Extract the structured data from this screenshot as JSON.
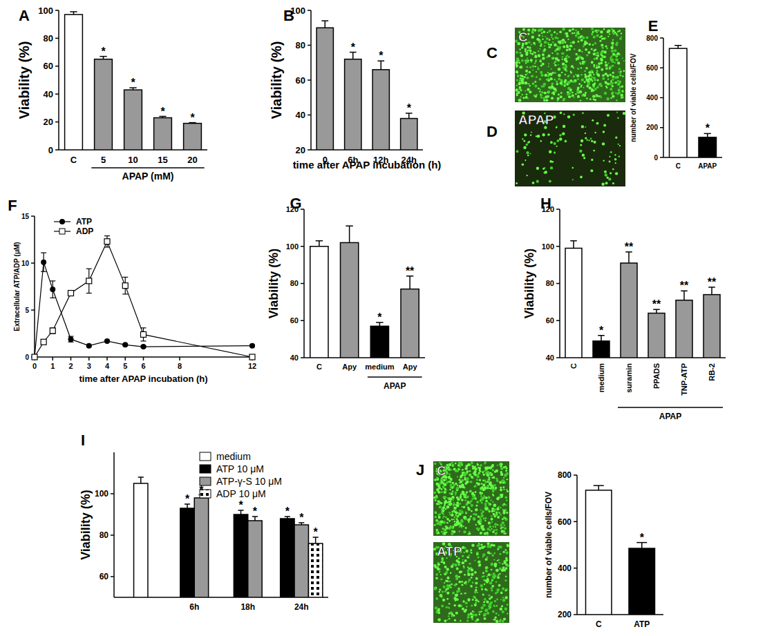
{
  "chart_data": [
    {
      "type": "bar",
      "title": "A",
      "categories": [
        "C",
        "5",
        "10",
        "15",
        "20"
      ],
      "values": [
        97,
        65,
        43,
        23,
        19
      ],
      "errors": [
        2,
        2,
        1.5,
        1,
        0.5
      ],
      "significance": [
        null,
        "*",
        "*",
        "*",
        "*"
      ],
      "colors": [
        "#ffffff",
        "#999999",
        "#999999",
        "#999999",
        "#999999"
      ],
      "ylim": [
        0,
        100
      ],
      "yticks": [
        0,
        20,
        40,
        60,
        80,
        100
      ],
      "y_label": "Viability (%)",
      "group_label": {
        "text": "APAP (mM)",
        "from": 1,
        "to": 4
      }
    },
    {
      "type": "bar",
      "title": "B",
      "categories": [
        "0",
        "6h",
        "12h",
        "24h"
      ],
      "values": [
        90,
        72,
        66,
        38
      ],
      "errors": [
        4,
        4,
        5,
        3
      ],
      "significance": [
        null,
        "*",
        "*",
        "*"
      ],
      "colors": [
        "#999999",
        "#999999",
        "#999999",
        "#999999"
      ],
      "ylim": [
        20,
        100
      ],
      "yticks": [
        20,
        40,
        60,
        80,
        100
      ],
      "y_label": "Viability (%)",
      "x_label": "time after APAP incubation (h)"
    },
    {
      "type": "image",
      "title": "C",
      "labels": [
        "C"
      ]
    },
    {
      "type": "image",
      "title": "D",
      "labels": [
        "APAP"
      ]
    },
    {
      "type": "bar",
      "title": "E",
      "categories": [
        "C",
        "APAP"
      ],
      "values": [
        730,
        135
      ],
      "errors": [
        20,
        25
      ],
      "significance": [
        null,
        "*"
      ],
      "colors": [
        "#ffffff",
        "#000000"
      ],
      "ylim": [
        0,
        800
      ],
      "yticks": [
        0,
        200,
        400,
        600,
        800
      ],
      "y_label": "number of viable cells/FOV"
    },
    {
      "type": "line",
      "title": "F",
      "x": [
        0,
        0.5,
        1,
        2,
        3,
        4,
        5,
        6,
        12
      ],
      "series": [
        {
          "name": "ATP",
          "color": "#000000",
          "marker": "circle",
          "values": [
            0,
            10.1,
            7.2,
            1.9,
            1.2,
            1.7,
            1.3,
            1.1,
            1.2
          ],
          "errors": [
            0,
            1,
            0.9,
            0.3,
            0.1,
            0.1,
            0.1,
            0.1,
            0.1
          ]
        },
        {
          "name": "ADP",
          "color": "#000000",
          "marker": "square",
          "values": [
            0,
            1.6,
            2.8,
            6.8,
            8.1,
            12.3,
            7.6,
            2.4,
            0
          ],
          "errors": [
            0,
            0.1,
            0.3,
            0.1,
            1.3,
            0.6,
            0.9,
            0.7,
            0
          ]
        }
      ],
      "xlim": [
        0,
        12
      ],
      "xticks": [
        0,
        1,
        2,
        3,
        4,
        5,
        6,
        8,
        12
      ],
      "ylim": [
        0,
        15
      ],
      "yticks": [
        0,
        5,
        10,
        15
      ],
      "x_label": "time after APAP incubation (h)",
      "y_label": "Extracellular ATP/ADP (μM)",
      "legend": "top-left"
    },
    {
      "type": "bar",
      "title": "G",
      "categories": [
        "C",
        "Apy",
        "medium",
        "Apy"
      ],
      "values": [
        100,
        102,
        57,
        77
      ],
      "errors": [
        3,
        9,
        2,
        7
      ],
      "significance": [
        null,
        null,
        "*",
        "**"
      ],
      "colors": [
        "#ffffff",
        "#999999",
        "#000000",
        "#999999"
      ],
      "ylim": [
        40,
        120
      ],
      "yticks": [
        40,
        60,
        80,
        100,
        120
      ],
      "y_label": "Viability (%)",
      "group_label": {
        "text": "APAP",
        "from": 2,
        "to": 3
      }
    },
    {
      "type": "bar",
      "title": "H",
      "categories": [
        "C",
        "medium",
        "suramin",
        "PPADS",
        "TNP-ATP",
        "RB-2"
      ],
      "values": [
        99,
        49,
        91,
        64,
        71,
        74
      ],
      "errors": [
        4,
        3,
        6,
        2,
        5,
        4
      ],
      "significance": [
        null,
        "*",
        "**",
        "**",
        "**",
        "**"
      ],
      "colors": [
        "#ffffff",
        "#000000",
        "#999999",
        "#999999",
        "#999999",
        "#999999"
      ],
      "ylim": [
        40,
        120
      ],
      "yticks": [
        40,
        60,
        80,
        100,
        120
      ],
      "y_label": "Viability (%)",
      "group_label": {
        "text": "APAP",
        "from": 2,
        "to": 5
      }
    },
    {
      "type": "bar",
      "title": "I",
      "categories": [
        null,
        "6h",
        "18h",
        "24h"
      ],
      "series": [
        {
          "name": "medium",
          "color": "#ffffff",
          "values": [
            105,
            null,
            null,
            null
          ],
          "errors": [
            3,
            null,
            null,
            null
          ]
        },
        {
          "name": "ATP 10 μM",
          "color": "#000000",
          "values": [
            null,
            93,
            90,
            88
          ],
          "errors": [
            null,
            2,
            2,
            1
          ],
          "significance": [
            null,
            "*",
            "*",
            "*"
          ]
        },
        {
          "name": "ATP-γ-S 10 μM",
          "color": "#999999",
          "values": [
            null,
            98,
            87,
            85
          ],
          "errors": [
            null,
            1.5,
            2,
            1
          ],
          "significance": [
            null,
            "*",
            "*",
            "*"
          ]
        },
        {
          "name": "ADP 10 μM",
          "color": "#ffffff",
          "marker": "square",
          "values": [
            null,
            null,
            null,
            76
          ],
          "errors": [
            null,
            null,
            null,
            3
          ],
          "significance": [
            null,
            null,
            null,
            "*"
          ]
        }
      ],
      "ylim": [
        50,
        120
      ],
      "yticks": [
        60,
        80,
        100
      ],
      "y_label": "Viability (%)",
      "legend": "top"
    },
    {
      "type": "image",
      "title": "J",
      "labels": [
        "C",
        "ATP"
      ]
    },
    {
      "type": "bar",
      "categories": [
        "C",
        "ATP"
      ],
      "values": [
        735,
        485
      ],
      "errors": [
        20,
        25
      ],
      "significance": [
        null,
        "*"
      ],
      "colors": [
        "#ffffff",
        "#000000"
      ],
      "ylim": [
        200,
        800
      ],
      "yticks": [
        200,
        400,
        600,
        800
      ],
      "y_label": "number of viable cells/FOV"
    }
  ]
}
